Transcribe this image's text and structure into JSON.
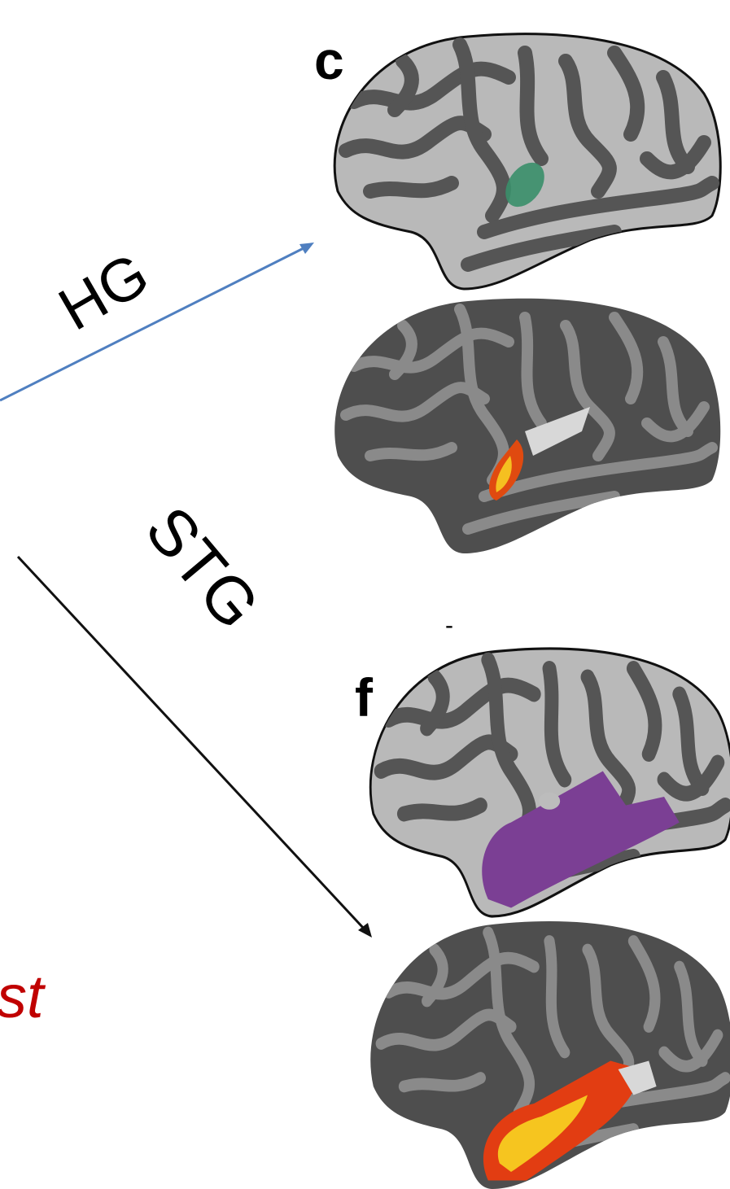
{
  "panels": {
    "c": "c",
    "f": "f"
  },
  "arrows": {
    "upper": "HG",
    "lower": "STG"
  },
  "fragment": "st",
  "dash": "-"
}
